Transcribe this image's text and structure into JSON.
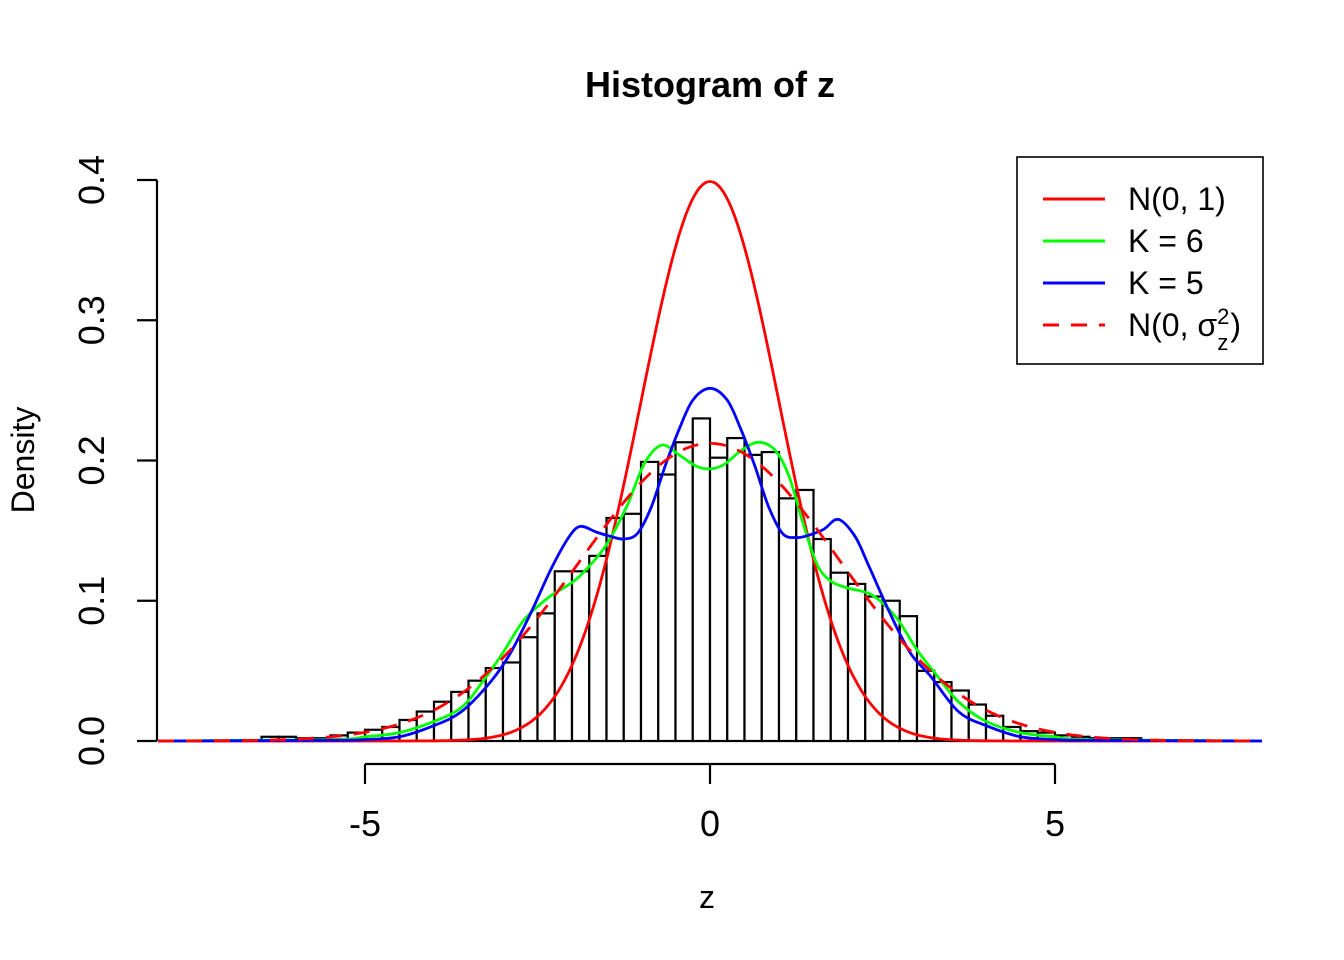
{
  "chart_data": {
    "type": "bar",
    "subtype": "histogram-with-density-curves",
    "title": "Histogram of z",
    "xlabel": "z",
    "ylabel": "Density",
    "xlim": [
      -8,
      8
    ],
    "ylim": [
      0,
      0.4
    ],
    "x_ticks": [
      {
        "v": -5,
        "label": "-5"
      },
      {
        "v": 0,
        "label": "0"
      },
      {
        "v": 5,
        "label": "5"
      }
    ],
    "y_ticks": [
      {
        "v": 0.0,
        "label": "0.0"
      },
      {
        "v": 0.1,
        "label": "0.1"
      },
      {
        "v": 0.2,
        "label": "0.2"
      },
      {
        "v": 0.3,
        "label": "0.3"
      },
      {
        "v": 0.4,
        "label": "0.4"
      }
    ],
    "grid": false,
    "bar_fill": "#ffffff",
    "bar_stroke": "#000000",
    "bins": {
      "start": -6.5,
      "width": 0.25,
      "densities": [
        0.003,
        0.003,
        0.002,
        0.002,
        0.004,
        0.006,
        0.008,
        0.01,
        0.015,
        0.021,
        0.028,
        0.035,
        0.043,
        0.052,
        0.056,
        0.074,
        0.091,
        0.121,
        0.121,
        0.132,
        0.159,
        0.162,
        0.199,
        0.19,
        0.213,
        0.23,
        0.202,
        0.216,
        0.204,
        0.206,
        0.173,
        0.179,
        0.144,
        0.12,
        0.112,
        0.103,
        0.1,
        0.089,
        0.05,
        0.042,
        0.036,
        0.026,
        0.018,
        0.01,
        0.007,
        0.006,
        0.004,
        0.003,
        0.002,
        0.002,
        0.002
      ]
    },
    "curves": [
      {
        "id": "n01",
        "name": "N(0, 1)",
        "color": "#ff0000",
        "style": "solid",
        "model": "gaussian",
        "mean": 0,
        "sd": 1,
        "peak": 0.3989
      },
      {
        "id": "k6",
        "name": "K = 6",
        "color": "#00ff00",
        "style": "solid",
        "points": [
          [
            -8,
            0
          ],
          [
            -5.5,
            0.001
          ],
          [
            -5,
            0.003
          ],
          [
            -4.5,
            0.006
          ],
          [
            -4,
            0.014
          ],
          [
            -3.6,
            0.024
          ],
          [
            -3.3,
            0.042
          ],
          [
            -3,
            0.063
          ],
          [
            -2.7,
            0.086
          ],
          [
            -2.35,
            0.102
          ],
          [
            -2,
            0.113
          ],
          [
            -1.8,
            0.122
          ],
          [
            -1.5,
            0.14
          ],
          [
            -1.2,
            0.168
          ],
          [
            -0.95,
            0.198
          ],
          [
            -0.7,
            0.211
          ],
          [
            -0.45,
            0.204
          ],
          [
            -0.2,
            0.196
          ],
          [
            0,
            0.194
          ],
          [
            0.2,
            0.197
          ],
          [
            0.45,
            0.207
          ],
          [
            0.7,
            0.213
          ],
          [
            0.95,
            0.207
          ],
          [
            1.15,
            0.188
          ],
          [
            1.35,
            0.155
          ],
          [
            1.55,
            0.126
          ],
          [
            1.75,
            0.114
          ],
          [
            2,
            0.109
          ],
          [
            2.35,
            0.104
          ],
          [
            2.7,
            0.088
          ],
          [
            3,
            0.065
          ],
          [
            3.3,
            0.046
          ],
          [
            3.6,
            0.028
          ],
          [
            4,
            0.014
          ],
          [
            4.5,
            0.006
          ],
          [
            5,
            0.003
          ],
          [
            5.5,
            0.001
          ],
          [
            8,
            0
          ]
        ]
      },
      {
        "id": "k5",
        "name": "K = 5",
        "color": "#0000ff",
        "style": "solid",
        "points": [
          [
            -8,
            0
          ],
          [
            -5.5,
            0.0005
          ],
          [
            -5,
            0.001
          ],
          [
            -4.5,
            0.003
          ],
          [
            -4,
            0.011
          ],
          [
            -3.6,
            0.021
          ],
          [
            -3.2,
            0.041
          ],
          [
            -2.9,
            0.062
          ],
          [
            -2.6,
            0.091
          ],
          [
            -2.3,
            0.123
          ],
          [
            -2.05,
            0.145
          ],
          [
            -1.88,
            0.153
          ],
          [
            -1.65,
            0.149
          ],
          [
            -1.45,
            0.146
          ],
          [
            -1.25,
            0.144
          ],
          [
            -1.05,
            0.148
          ],
          [
            -0.85,
            0.167
          ],
          [
            -0.65,
            0.196
          ],
          [
            -0.45,
            0.222
          ],
          [
            -0.25,
            0.243
          ],
          [
            0,
            0.2515
          ],
          [
            0.25,
            0.243
          ],
          [
            0.45,
            0.222
          ],
          [
            0.65,
            0.196
          ],
          [
            0.85,
            0.167
          ],
          [
            1.05,
            0.148
          ],
          [
            1.25,
            0.145
          ],
          [
            1.45,
            0.147
          ],
          [
            1.65,
            0.151
          ],
          [
            1.86,
            0.158
          ],
          [
            2.1,
            0.146
          ],
          [
            2.3,
            0.125
          ],
          [
            2.6,
            0.092
          ],
          [
            2.9,
            0.063
          ],
          [
            3.2,
            0.046
          ],
          [
            3.6,
            0.021
          ],
          [
            4,
            0.011
          ],
          [
            4.5,
            0.003
          ],
          [
            5,
            0.001
          ],
          [
            5.5,
            0.0005
          ],
          [
            8,
            0
          ]
        ]
      },
      {
        "id": "n0s2",
        "name": "N(0, σz²)",
        "color": "#ff0000",
        "style": "dashed",
        "model": "gaussian",
        "mean": 0,
        "sd": 1.88,
        "peak": 0.2122
      }
    ],
    "legend": {
      "position": "topright",
      "items": [
        {
          "curve": "n01",
          "label": "N(0, 1)"
        },
        {
          "curve": "k6",
          "label": "K = 6"
        },
        {
          "curve": "k5",
          "label": "K = 5"
        },
        {
          "curve": "n0s2",
          "label": "N(0, σz²)",
          "rich": {
            "pre": "N(0, ",
            "sym": "σ",
            "sup": "2",
            "sub": "z",
            "post": ")"
          }
        }
      ]
    }
  }
}
